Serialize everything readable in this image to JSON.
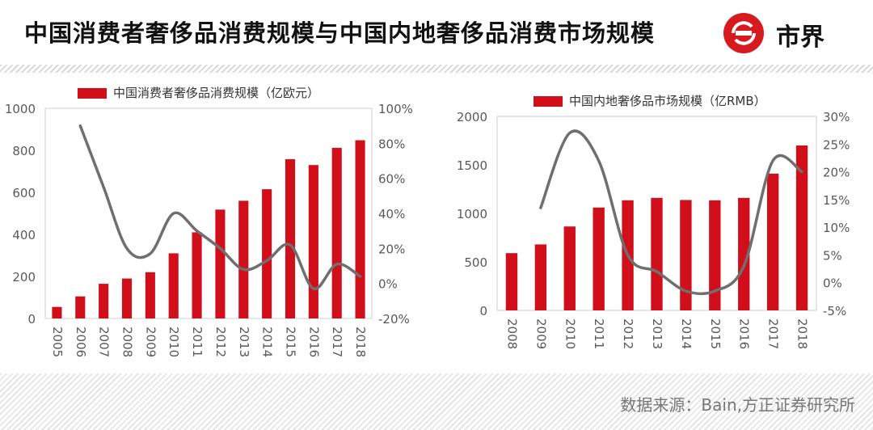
{
  "header": {
    "title": "中国消费者奢侈品消费规模与中国内地奢侈品消费市场规模",
    "logo_text": "市界"
  },
  "footer": {
    "source": "数据来源：Bain,方正证券研究所"
  },
  "colors": {
    "bar": "#d10f1b",
    "line": "#6f6f6f",
    "brand": "#d71920"
  },
  "icons": {
    "logo": "shijie-logo-icon"
  },
  "chart_data": [
    {
      "type": "bar",
      "categories": [
        "2005",
        "2006",
        "2007",
        "2008",
        "2009",
        "2010",
        "2011",
        "2012",
        "2013",
        "2014",
        "2015",
        "2016",
        "2017",
        "2018"
      ],
      "series": [
        {
          "name": "中国消费者奢侈品消费规模（亿欧元）",
          "type": "bar",
          "axis": "left",
          "values": [
            55,
            105,
            165,
            190,
            220,
            310,
            410,
            518,
            560,
            615,
            758,
            730,
            812,
            848
          ]
        },
        {
          "type": "line",
          "axis": "right",
          "values": [
            null,
            90,
            55,
            20,
            17,
            40,
            30,
            20,
            8,
            13,
            22,
            -3,
            11,
            4
          ]
        }
      ],
      "ylim": [
        0,
        1000
      ],
      "yticks": [
        "0",
        "200",
        "400",
        "600",
        "800",
        "1000"
      ],
      "y2lim": [
        -20,
        100
      ],
      "y2ticks": [
        "-20%",
        "0%",
        "20%",
        "40%",
        "60%",
        "80%",
        "100%"
      ],
      "legend_position": "top"
    },
    {
      "type": "bar",
      "categories": [
        "2008",
        "2009",
        "2010",
        "2011",
        "2012",
        "2013",
        "2014",
        "2015",
        "2016",
        "2017",
        "2018"
      ],
      "series": [
        {
          "name": "中国内地奢侈品市场规模（亿RMB）",
          "type": "bar",
          "axis": "left",
          "values": [
            590,
            680,
            865,
            1060,
            1135,
            1160,
            1138,
            1135,
            1160,
            1410,
            1700
          ]
        },
        {
          "type": "line",
          "axis": "right",
          "values": [
            null,
            13.5,
            27,
            22,
            5,
            2,
            -1.5,
            -1.5,
            3,
            22,
            20
          ]
        }
      ],
      "ylim": [
        0,
        2000
      ],
      "yticks": [
        "0",
        "500",
        "1000",
        "1500",
        "2000"
      ],
      "y2lim": [
        -5,
        30
      ],
      "y2ticks": [
        "-5%",
        "0%",
        "5%",
        "10%",
        "15%",
        "20%",
        "25%",
        "30%"
      ],
      "legend_position": "top"
    }
  ]
}
